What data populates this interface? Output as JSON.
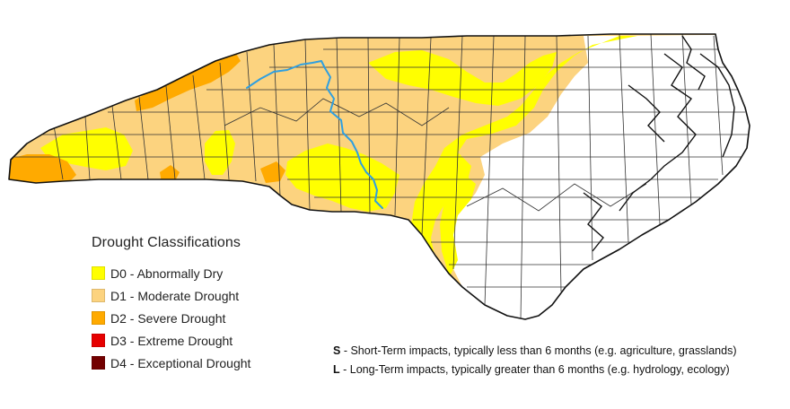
{
  "legend": {
    "title": "Drought Classifications",
    "items": [
      {
        "code": "D0",
        "label": "D0 - Abnormally Dry",
        "color": "#ffff00"
      },
      {
        "code": "D1",
        "label": "D1 - Moderate Drought",
        "color": "#fcd37f"
      },
      {
        "code": "D2",
        "label": "D2 - Severe Drought",
        "color": "#ffaa00"
      },
      {
        "code": "D3",
        "label": "D3 - Extreme Drought",
        "color": "#e60000"
      },
      {
        "code": "D4",
        "label": "D4 - Exceptional Drought",
        "color": "#730000"
      }
    ]
  },
  "impacts": [
    {
      "key": "S",
      "text": " - Short-Term impacts, typically less than 6 months (e.g. agriculture, grasslands)"
    },
    {
      "key": "L",
      "text": " - Long-Term impacts, typically greater than 6 months (e.g. hydrology, ecology)"
    }
  ],
  "colors": {
    "river": "#2f9fe0",
    "outline": "#111111",
    "county_line": "#333333"
  }
}
